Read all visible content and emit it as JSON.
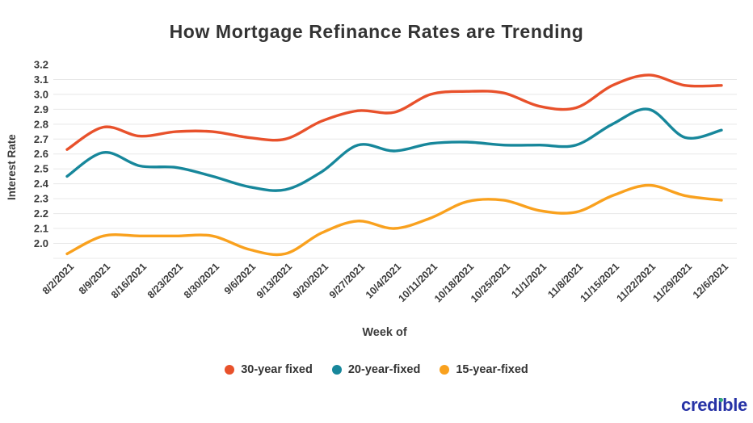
{
  "chart_data": {
    "type": "line",
    "title": "How Mortgage Refinance Rates are Trending",
    "xlabel": "Week of",
    "ylabel": "Interest Rate",
    "ylim": [
      1.9,
      3.25
    ],
    "yticks": [
      "3.2",
      "3.1",
      "3.0",
      "2.9",
      "2.8",
      "2.7",
      "2.6",
      "2.5",
      "2.4",
      "2.3",
      "2.2",
      "2.1",
      "2.0"
    ],
    "grid": true,
    "grid_color": "#e8e8e8",
    "legend_position": "bottom",
    "categories": [
      "8/2/2021",
      "8/9/2021",
      "8/16/2021",
      "8/23/2021",
      "8/30/2021",
      "9/6/2021",
      "9/13/2021",
      "9/20/2021",
      "9/27/2021",
      "10/4/2021",
      "10/11/2021",
      "10/18/2021",
      "10/25/2021",
      "11/1/2021",
      "11/8/2021",
      "11/15/2021",
      "11/22/2021",
      "11/29/2021",
      "12/6/2021"
    ],
    "series": [
      {
        "name": "30-year fixed",
        "color": "#E8512B",
        "values": [
          2.63,
          2.78,
          2.72,
          2.75,
          2.75,
          2.71,
          2.7,
          2.82,
          2.89,
          2.88,
          3.0,
          3.02,
          3.01,
          2.92,
          2.91,
          3.06,
          3.13,
          3.06,
          3.06
        ]
      },
      {
        "name": "20-year-fixed",
        "color": "#17879B",
        "values": [
          2.45,
          2.61,
          2.52,
          2.51,
          2.45,
          2.38,
          2.36,
          2.48,
          2.66,
          2.62,
          2.67,
          2.68,
          2.66,
          2.66,
          2.66,
          2.8,
          2.9,
          2.71,
          2.76
        ]
      },
      {
        "name": "15-year-fixed",
        "color": "#F9A11E",
        "values": [
          1.93,
          2.05,
          2.05,
          2.05,
          2.05,
          1.96,
          1.93,
          2.07,
          2.15,
          2.1,
          2.17,
          2.28,
          2.29,
          2.22,
          2.21,
          2.32,
          2.39,
          2.32,
          2.29
        ]
      }
    ]
  },
  "footer": {
    "logo_text": "credible",
    "logo_color": "#2733A6",
    "logo_dot_color": "#35AC7C"
  }
}
